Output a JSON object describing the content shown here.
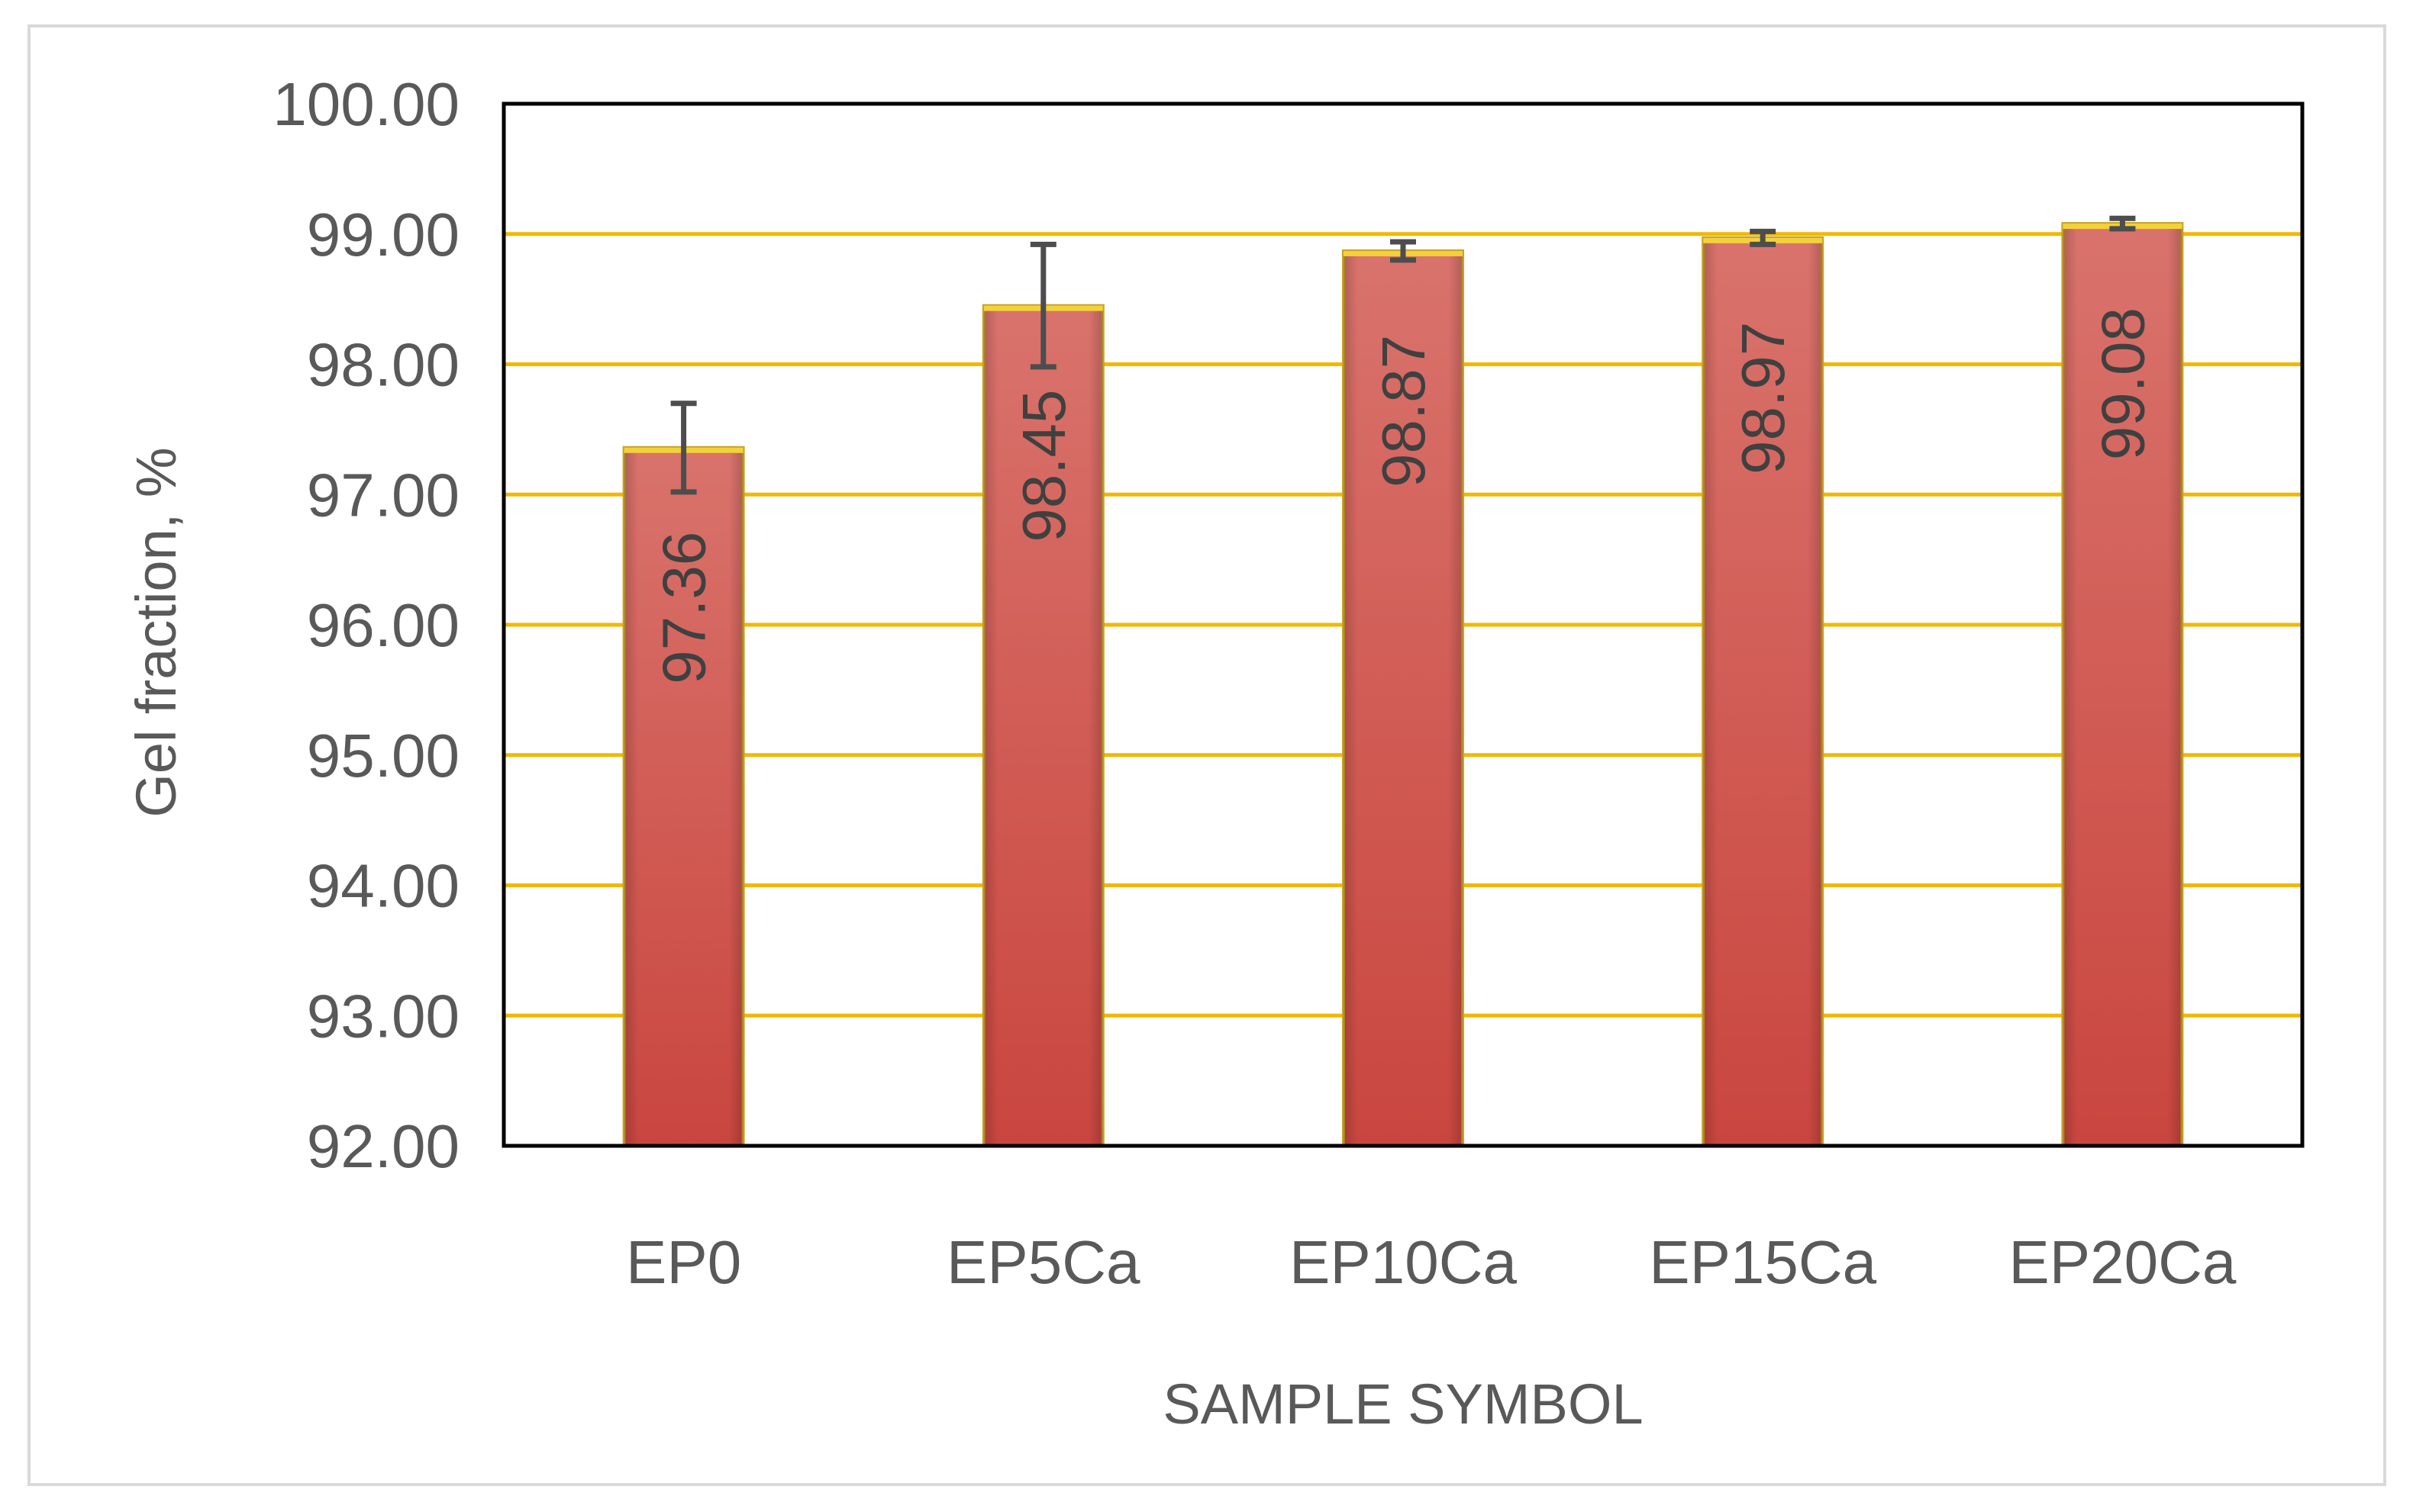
{
  "chart_data": {
    "type": "bar",
    "title": "",
    "xlabel": "SAMPLE SYMBOL",
    "ylabel": "Gel fraction, %",
    "categories": [
      "EP0",
      "EP5Ca",
      "EP10Ca",
      "EP15Ca",
      "EP20Ca"
    ],
    "values": [
      97.36,
      98.45,
      98.87,
      98.97,
      99.08
    ],
    "value_labels": [
      "97.36",
      "98.45",
      "98.87",
      "98.97",
      "99.08"
    ],
    "error_bars": [
      0.34,
      0.47,
      0.07,
      0.05,
      0.04
    ],
    "ylim": [
      92,
      100
    ],
    "yticks": [
      92,
      93,
      94,
      95,
      96,
      97,
      98,
      99,
      100
    ],
    "ytick_labels": [
      "92.00",
      "93.00",
      "94.00",
      "95.00",
      "96.00",
      "97.00",
      "98.00",
      "99.00",
      "100.00"
    ],
    "grid": true,
    "legend": "none",
    "colors": {
      "bar_fill": "#c9463f",
      "bar_fill_light": "#d9736c",
      "bar_edge": "#c9a227",
      "gridline": "#f2b800",
      "plot_border": "#000000",
      "error_bar": "#4d4d4d",
      "text": "#595959"
    }
  }
}
